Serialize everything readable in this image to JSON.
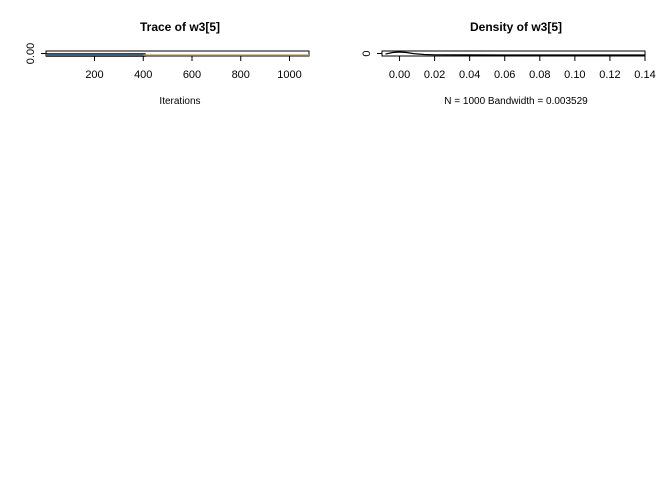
{
  "chart_data": [
    {
      "type": "line",
      "title": "Trace of w3[5]",
      "xlabel": "Iterations",
      "ylabel": "",
      "xlim": [
        1,
        1080
      ],
      "ylim": [
        0,
        0.001
      ],
      "x_ticks": [
        "200",
        "400",
        "600",
        "800",
        "1000"
      ],
      "x_tick_values": [
        200,
        400,
        600,
        800,
        1000
      ],
      "y_ticks": [
        "0.00"
      ],
      "y_tick_values": [
        0
      ],
      "series": [
        {
          "color": "#000000",
          "x": [
            1,
            100,
            200,
            300,
            350,
            400,
            410
          ],
          "y": [
            0,
            0,
            0,
            0,
            0,
            0,
            0
          ]
        },
        {
          "color": "#e41a1c",
          "x": [
            1,
            300,
            600,
            900,
            1080
          ],
          "y": [
            0,
            0,
            0,
            0,
            0
          ]
        },
        {
          "color": "#4daf4a",
          "x": [
            1,
            100,
            200,
            300,
            400
          ],
          "y": [
            0,
            0,
            0,
            0,
            0
          ]
        },
        {
          "color": "#377eb8",
          "x": [
            1,
            100,
            200,
            300,
            400
          ],
          "y": [
            0,
            0,
            0,
            0,
            0
          ]
        },
        {
          "color": "#c9b87a",
          "x": [
            400,
            600,
            800,
            1000,
            1080
          ],
          "y": [
            0,
            0,
            0,
            0,
            0
          ]
        }
      ]
    },
    {
      "type": "line",
      "title": "Density of w3[5]",
      "xlabel": "N = 1000   Bandwidth = 0.003529",
      "ylabel": "",
      "xlim": [
        -0.01,
        0.14
      ],
      "x_ticks": [
        "0.00",
        "0.02",
        "0.04",
        "0.06",
        "0.08",
        "0.10",
        "0.12",
        "0.14"
      ],
      "x_tick_values": [
        0.0,
        0.02,
        0.04,
        0.06,
        0.08,
        0.1,
        0.12,
        0.14
      ],
      "y_ticks": [
        "0"
      ],
      "y_tick_values": [
        0
      ],
      "series": [
        {
          "color": "#000000",
          "x": [
            -0.008,
            -0.004,
            0.0,
            0.004,
            0.008,
            0.014,
            0.02,
            0.04,
            0.06,
            0.08,
            0.1,
            0.12,
            0.14
          ],
          "y": [
            0.3,
            0.85,
            1.0,
            0.85,
            0.45,
            0.15,
            0.06,
            0.02,
            0.01,
            0.005,
            0.003,
            0.001,
            0.0
          ]
        }
      ]
    }
  ]
}
